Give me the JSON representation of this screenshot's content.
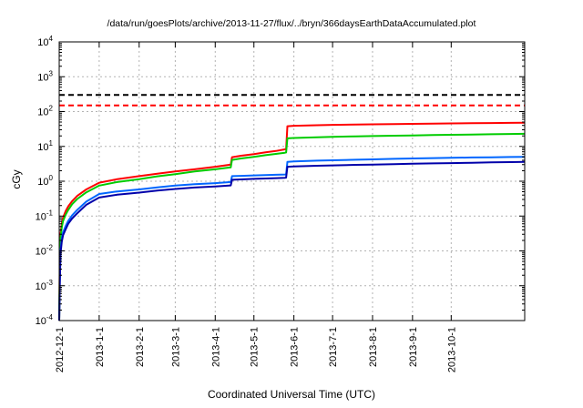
{
  "title": "/data/run/goesPlots/archive/2013-11-27/flux/../bryn/366daysEarthDataAccumulated.plot",
  "xlabel": "Coordinated Universal Time (UTC)",
  "ylabel": "cGy",
  "chart_data": {
    "type": "line",
    "title": "/data/run/goesPlots/archive/2013-11-27/flux/../bryn/366daysEarthDataAccumulated.plot",
    "xlabel": "Coordinated Universal Time (UTC)",
    "ylabel": "cGy",
    "grid": true,
    "x_axis": {
      "range_days": [
        0,
        361
      ],
      "ticks": [
        {
          "day": 0,
          "label": "2012-12-1"
        },
        {
          "day": 31,
          "label": "2013-1-1"
        },
        {
          "day": 62,
          "label": "2013-2-1"
        },
        {
          "day": 90,
          "label": "2013-3-1"
        },
        {
          "day": 121,
          "label": "2013-4-1"
        },
        {
          "day": 151,
          "label": "2013-5-1"
        },
        {
          "day": 182,
          "label": "2013-6-1"
        },
        {
          "day": 212,
          "label": "2013-7-1"
        },
        {
          "day": 243,
          "label": "2013-8-1"
        },
        {
          "day": 274,
          "label": "2013-9-1"
        },
        {
          "day": 304,
          "label": "2013-10-1"
        }
      ]
    },
    "y_axis": {
      "scale": "log",
      "exponent_range": [
        -4,
        4
      ],
      "tick_base": "10"
    },
    "reference_lines": [
      {
        "name": "upper-threshold",
        "value": 300,
        "color": "#000000",
        "style": "dashed"
      },
      {
        "name": "lower-threshold",
        "value": 150,
        "color": "#ff0000",
        "style": "dashed"
      }
    ],
    "series": [
      {
        "name": "accumulated-dose-red",
        "color": "#ff0000",
        "points": [
          [
            0,
            0.0001
          ],
          [
            0.4,
            0.004
          ],
          [
            1,
            0.03
          ],
          [
            2,
            0.06
          ],
          [
            3,
            0.09
          ],
          [
            5,
            0.14
          ],
          [
            7,
            0.19
          ],
          [
            10,
            0.27
          ],
          [
            14,
            0.38
          ],
          [
            21,
            0.58
          ],
          [
            31,
            0.91
          ],
          [
            45,
            1.15
          ],
          [
            62,
            1.4
          ],
          [
            76,
            1.65
          ],
          [
            90,
            1.9
          ],
          [
            105,
            2.2
          ],
          [
            121,
            2.6
          ],
          [
            133,
            3.0
          ],
          [
            134,
            4.9
          ],
          [
            141,
            5.4
          ],
          [
            151,
            6.0
          ],
          [
            160,
            6.8
          ],
          [
            168,
            7.4
          ],
          [
            175,
            8.2
          ],
          [
            176,
            8.3
          ],
          [
            177,
            38
          ],
          [
            182,
            39
          ],
          [
            200,
            40.5
          ],
          [
            212,
            41.5
          ],
          [
            230,
            42.5
          ],
          [
            243,
            43
          ],
          [
            260,
            43.8
          ],
          [
            274,
            44.4
          ],
          [
            290,
            45
          ],
          [
            304,
            45.6
          ],
          [
            320,
            46.2
          ],
          [
            335,
            46.8
          ],
          [
            350,
            47.4
          ],
          [
            361,
            48
          ]
        ]
      },
      {
        "name": "accumulated-dose-green",
        "color": "#00cc00",
        "points": [
          [
            0,
            0.0001
          ],
          [
            0.4,
            0.003
          ],
          [
            1,
            0.022
          ],
          [
            2,
            0.047
          ],
          [
            3,
            0.072
          ],
          [
            5,
            0.11
          ],
          [
            7,
            0.15
          ],
          [
            10,
            0.22
          ],
          [
            14,
            0.31
          ],
          [
            21,
            0.48
          ],
          [
            31,
            0.75
          ],
          [
            45,
            0.95
          ],
          [
            62,
            1.15
          ],
          [
            76,
            1.38
          ],
          [
            90,
            1.6
          ],
          [
            105,
            1.9
          ],
          [
            121,
            2.2
          ],
          [
            133,
            2.5
          ],
          [
            134,
            4.1
          ],
          [
            141,
            4.5
          ],
          [
            151,
            5.0
          ],
          [
            160,
            5.6
          ],
          [
            168,
            6.1
          ],
          [
            175,
            6.6
          ],
          [
            176,
            6.7
          ],
          [
            177,
            17
          ],
          [
            182,
            17.5
          ],
          [
            200,
            18.3
          ],
          [
            212,
            18.8
          ],
          [
            230,
            19.4
          ],
          [
            243,
            19.8
          ],
          [
            260,
            20.3
          ],
          [
            274,
            20.7
          ],
          [
            290,
            21.1
          ],
          [
            304,
            21.5
          ],
          [
            320,
            21.9
          ],
          [
            335,
            22.3
          ],
          [
            350,
            22.7
          ],
          [
            361,
            23
          ]
        ]
      },
      {
        "name": "accumulated-dose-lightblue",
        "color": "#0066ff",
        "points": [
          [
            0,
            0.0001
          ],
          [
            0.4,
            0.0012
          ],
          [
            1,
            0.01
          ],
          [
            2,
            0.022
          ],
          [
            3,
            0.034
          ],
          [
            5,
            0.052
          ],
          [
            7,
            0.073
          ],
          [
            10,
            0.105
          ],
          [
            14,
            0.15
          ],
          [
            21,
            0.26
          ],
          [
            31,
            0.43
          ],
          [
            45,
            0.51
          ],
          [
            62,
            0.58
          ],
          [
            76,
            0.67
          ],
          [
            90,
            0.75
          ],
          [
            105,
            0.82
          ],
          [
            121,
            0.88
          ],
          [
            133,
            0.95
          ],
          [
            134,
            1.4
          ],
          [
            141,
            1.43
          ],
          [
            151,
            1.47
          ],
          [
            160,
            1.5
          ],
          [
            168,
            1.53
          ],
          [
            175,
            1.56
          ],
          [
            176,
            1.57
          ],
          [
            177,
            3.6
          ],
          [
            182,
            3.7
          ],
          [
            200,
            3.9
          ],
          [
            212,
            4.0
          ],
          [
            230,
            4.15
          ],
          [
            243,
            4.25
          ],
          [
            260,
            4.4
          ],
          [
            274,
            4.5
          ],
          [
            290,
            4.6
          ],
          [
            304,
            4.7
          ],
          [
            320,
            4.8
          ],
          [
            335,
            4.87
          ],
          [
            350,
            4.95
          ],
          [
            361,
            5.0
          ]
        ]
      },
      {
        "name": "accumulated-dose-darkblue",
        "color": "#0000aa",
        "points": [
          [
            0,
            0.0001
          ],
          [
            0.4,
            0.0009
          ],
          [
            1,
            0.008
          ],
          [
            2,
            0.018
          ],
          [
            3,
            0.028
          ],
          [
            5,
            0.042
          ],
          [
            7,
            0.06
          ],
          [
            10,
            0.085
          ],
          [
            14,
            0.12
          ],
          [
            21,
            0.21
          ],
          [
            31,
            0.34
          ],
          [
            45,
            0.41
          ],
          [
            62,
            0.47
          ],
          [
            76,
            0.54
          ],
          [
            90,
            0.6
          ],
          [
            105,
            0.66
          ],
          [
            121,
            0.71
          ],
          [
            133,
            0.76
          ],
          [
            134,
            1.1
          ],
          [
            141,
            1.13
          ],
          [
            151,
            1.17
          ],
          [
            160,
            1.2
          ],
          [
            168,
            1.23
          ],
          [
            175,
            1.26
          ],
          [
            176,
            1.27
          ],
          [
            177,
            2.6
          ],
          [
            182,
            2.65
          ],
          [
            200,
            2.78
          ],
          [
            212,
            2.85
          ],
          [
            230,
            2.95
          ],
          [
            243,
            3.0
          ],
          [
            260,
            3.1
          ],
          [
            274,
            3.17
          ],
          [
            290,
            3.25
          ],
          [
            304,
            3.32
          ],
          [
            320,
            3.4
          ],
          [
            335,
            3.47
          ],
          [
            350,
            3.55
          ],
          [
            361,
            3.6
          ]
        ]
      }
    ]
  }
}
